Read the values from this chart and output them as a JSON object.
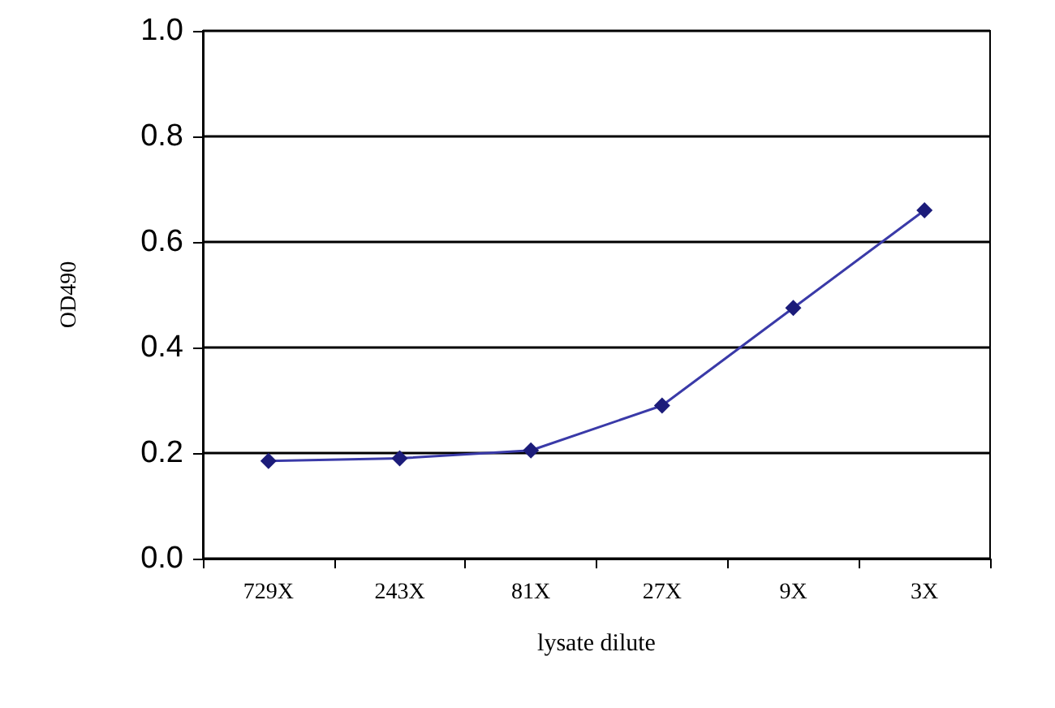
{
  "chart_data": {
    "type": "line",
    "xlabel": "lysate dilute",
    "ylabel": "OD490",
    "categories": [
      "729X",
      "243X",
      "81X",
      "27X",
      "9X",
      "3X"
    ],
    "series": [
      {
        "color": "#3a3aa8",
        "values": [
          0.185,
          0.19,
          0.205,
          0.29,
          0.475,
          0.66
        ]
      }
    ],
    "ylim": [
      0,
      1
    ],
    "yticks": [
      {
        "value": 0,
        "label": "0.0"
      },
      {
        "value": 0.2,
        "label": "0.2"
      },
      {
        "value": 0.4,
        "label": "0.4"
      },
      {
        "value": 0.6,
        "label": "0.6"
      },
      {
        "value": 0.8,
        "label": "0.8"
      },
      {
        "value": 1,
        "label": "1.0"
      }
    ],
    "grid": "y",
    "marker": "diamond",
    "line_style": "solid"
  }
}
